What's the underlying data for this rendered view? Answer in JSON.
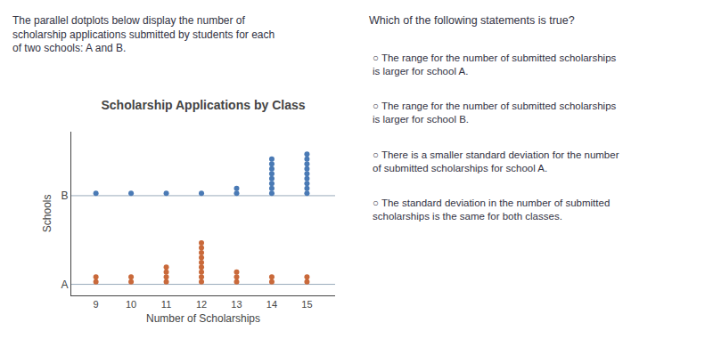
{
  "chart_data": {
    "type": "dot",
    "title": "Scholarship Applications by Class",
    "xlabel": "Number of Scholarships",
    "ylabel": "Schools",
    "x": [
      9,
      10,
      11,
      12,
      13,
      14,
      15
    ],
    "series": [
      {
        "name": "A",
        "color": "#c9693a",
        "values": [
          2,
          2,
          4,
          9,
          3,
          2,
          2
        ]
      },
      {
        "name": "B",
        "color": "#4a7ab5",
        "values": [
          1,
          1,
          1,
          1,
          2,
          8,
          9
        ]
      }
    ],
    "xlim": [
      8.3,
      15.8
    ],
    "xticks": [
      9,
      10,
      11,
      12,
      13,
      14,
      15
    ],
    "grid": false,
    "annotations": [
      [
        "The parallel dotplots below display the number of",
        "scholarship applications submitted by students for each",
        "of two schools: A and B."
      ],
      [
        "Which of the following statements is true?"
      ],
      [
        "○ The range for the number of submitted scholarships",
        "is larger for school A."
      ],
      [
        "○ The range for the number of submitted scholarships",
        "is larger for school B."
      ],
      [
        "○ There is a smaller standard deviation for the number",
        "of submitted scholarships for school A."
      ],
      [
        "○ The standard deviation in the number of submitted",
        "scholarships is the same for both classes."
      ]
    ]
  }
}
